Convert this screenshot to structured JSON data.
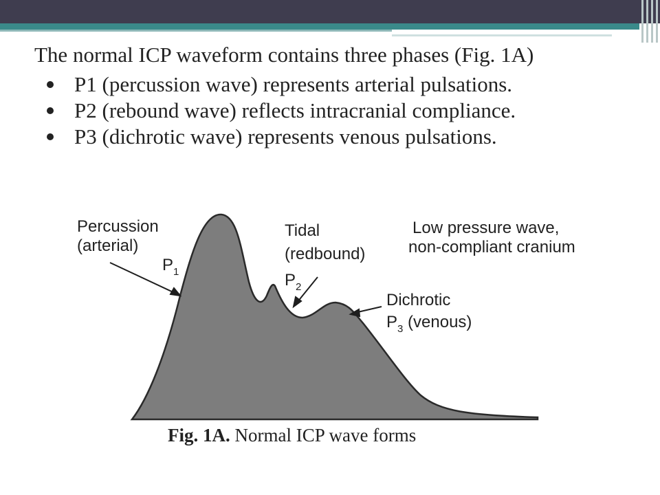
{
  "slide": {
    "intro": "The normal ICP waveform contains three phases (Fig. 1A)",
    "bullets": [
      "P1 (percussion wave) represents arterial pulsations.",
      "P2 (rebound wave) reflects intracranial compliance.",
      "P3 (dichrotic wave) represents venous pulsations."
    ]
  },
  "figure": {
    "label_p1_line1": "Percussion",
    "label_p1_line2": "(arterial)",
    "label_p1_marker": "P",
    "label_p1_sub": "1",
    "label_p2_line1": "Tidal",
    "label_p2_line2": "(redbound)",
    "label_p2_marker": "P",
    "label_p2_sub": "2",
    "label_low_line1": "Low pressure wave,",
    "label_low_line2": "non-compliant cranium",
    "label_p3_line1": "Dichrotic",
    "label_p3_marker": "P",
    "label_p3_sub": "3",
    "label_p3_rest": " (venous)",
    "caption_bold": "Fig. 1A.",
    "caption_rest": " Normal ICP wave forms",
    "colors": {
      "wave_fill": "#7d7d7d",
      "wave_stroke": "#2a2a2a",
      "topbar": "#3f3d4f",
      "teal": "#3a8a8a"
    }
  }
}
